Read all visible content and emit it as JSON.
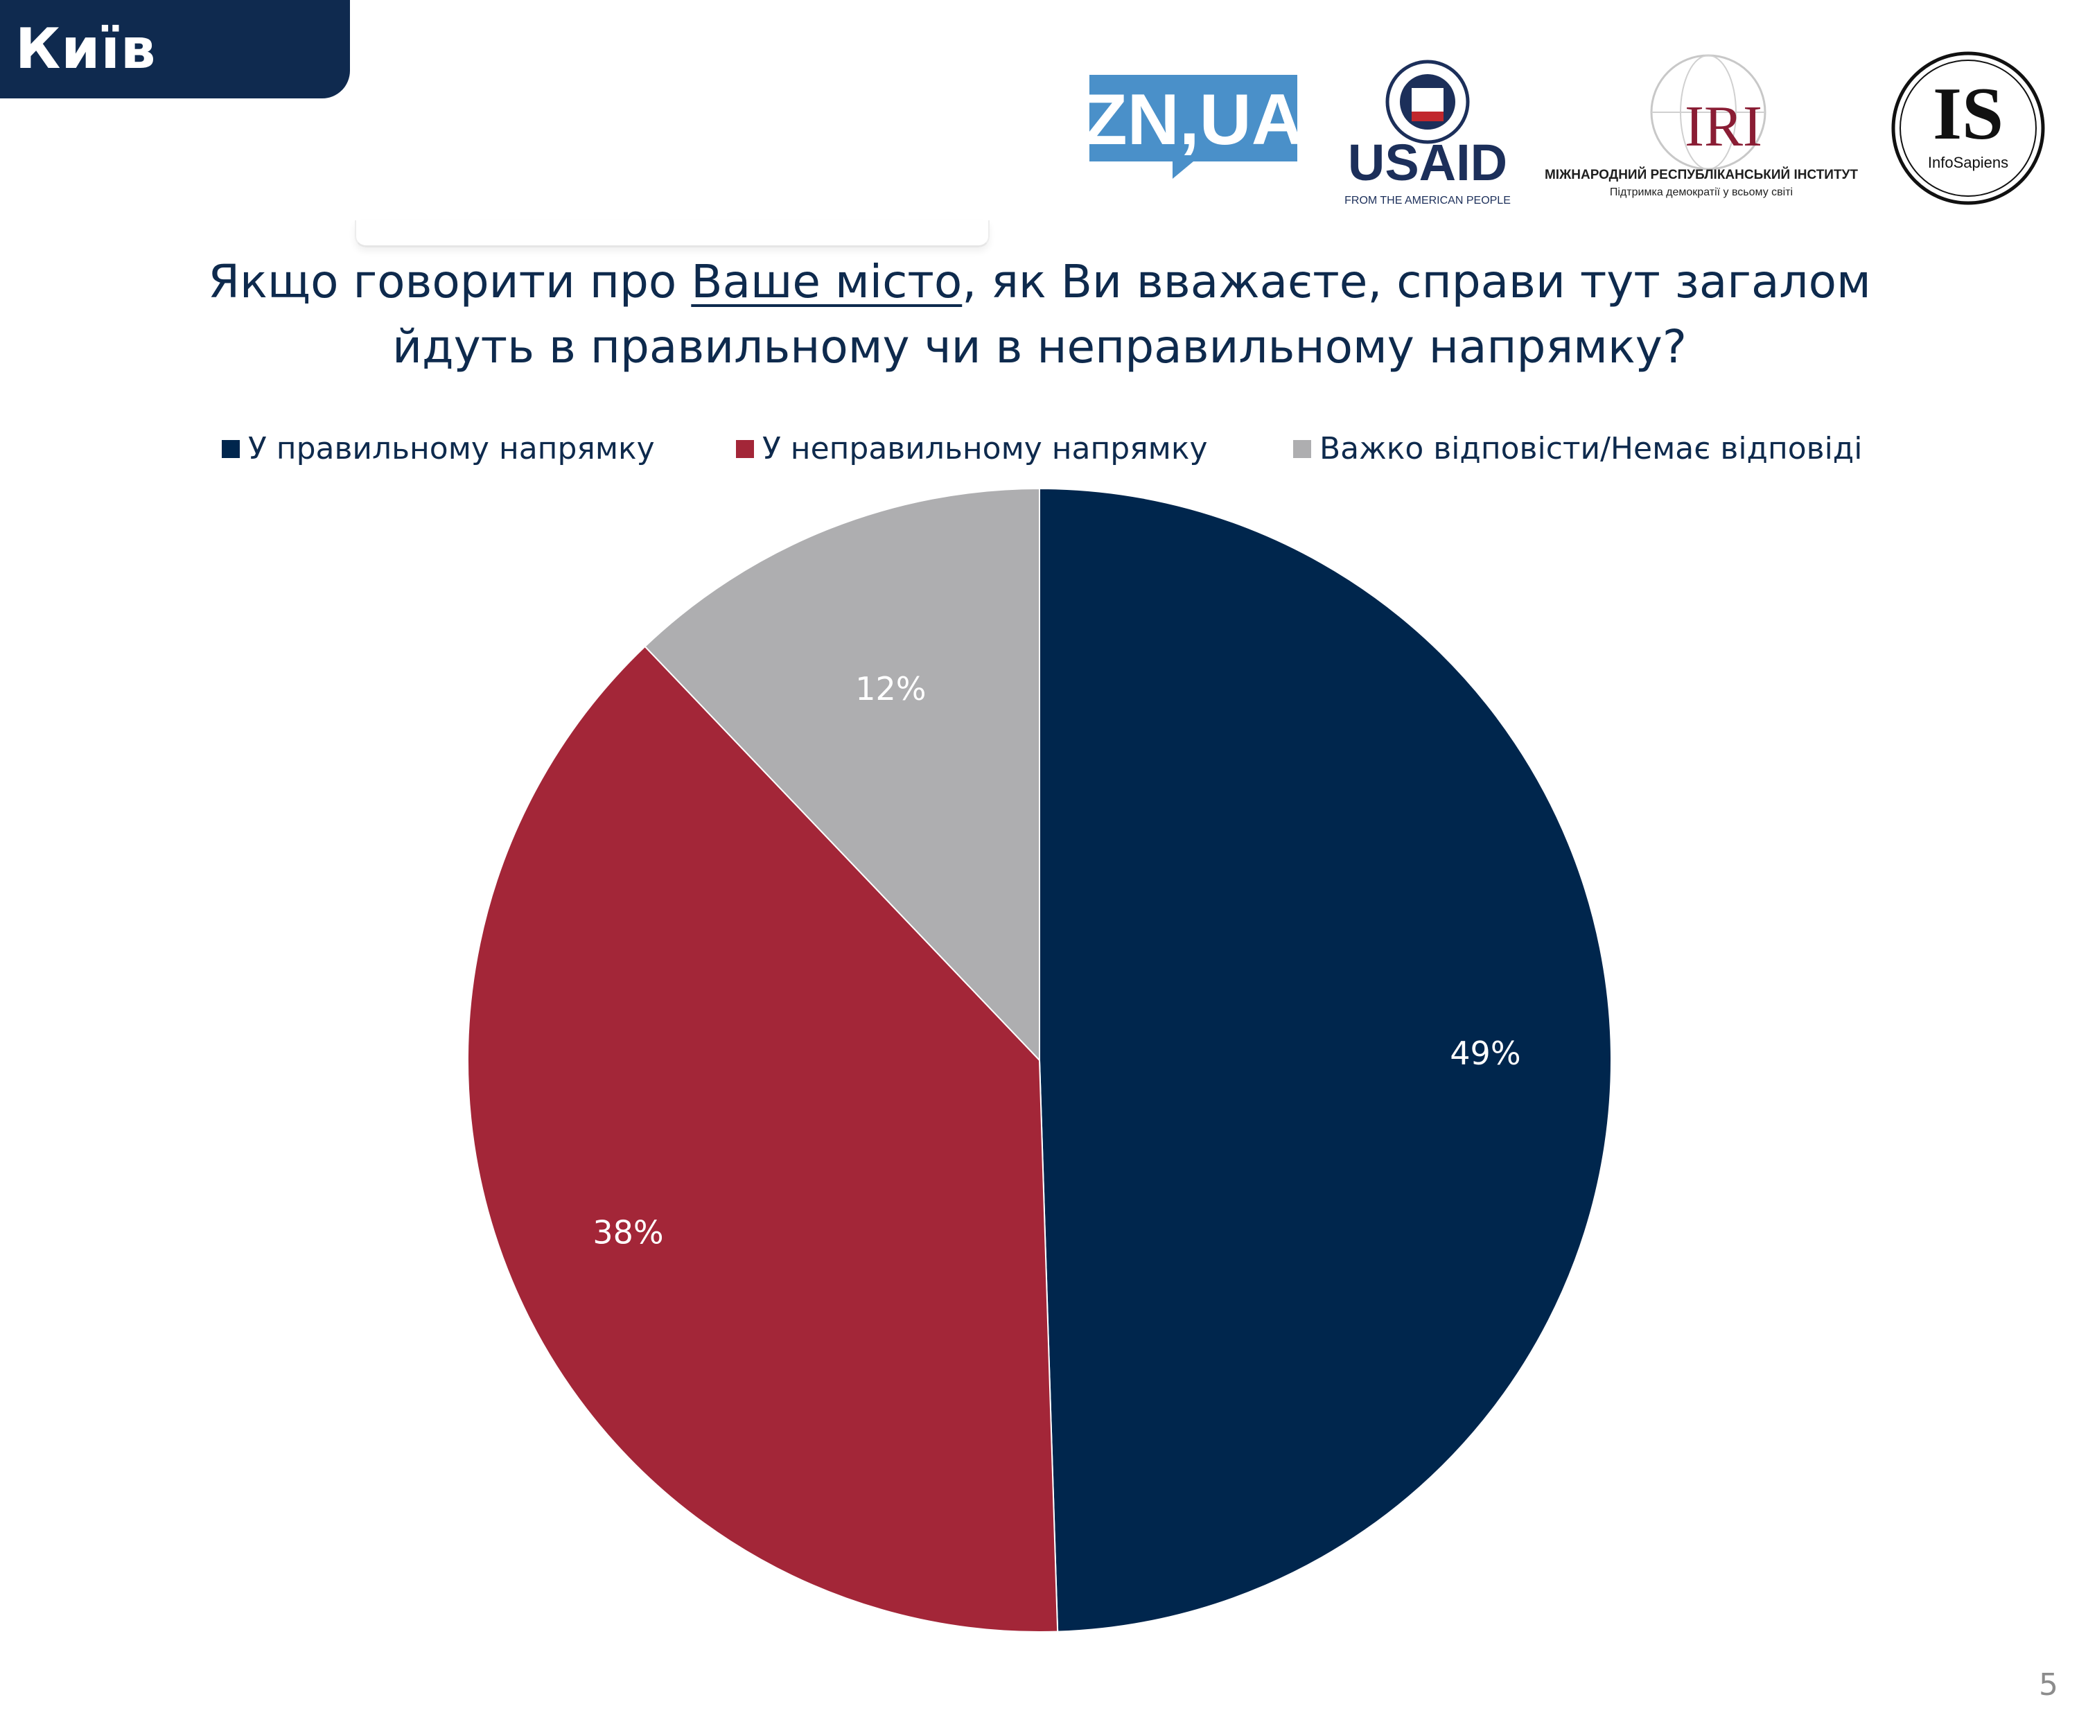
{
  "header": {
    "city": "Київ"
  },
  "logos": {
    "zn": "ZN,UA",
    "usaid_name": "USAID",
    "usaid_tagline": "FROM THE AMERICAN PEOPLE",
    "iri_name": "IRI",
    "iri_line1": "МІЖНАРОДНИЙ РЕСПУБЛІКАНСЬКИЙ ІНСТИТУТ",
    "iri_line2": "Підтримка демократії у всьому світі",
    "is_mark": "IS",
    "is_name": "InfoSapiens"
  },
  "title": {
    "part1": "Якщо говорити про ",
    "underlined": "Ваше місто",
    "part2": ", як Ви вважаєте, справи тут загалом",
    "line2": "йдуть в правильному чи в неправильному напрямку?"
  },
  "chart_data": {
    "type": "pie",
    "categories": [
      "У правильному напрямку",
      "У неправильному напрямку",
      "Важко відповісти/Немає відповіді"
    ],
    "values": [
      49,
      38,
      12
    ],
    "labels": [
      "49%",
      "38%",
      "12%"
    ],
    "colors": [
      "#00264d",
      "#a32638",
      "#aeaeb0"
    ],
    "legend_position": "top",
    "start_angle": "12 o'clock",
    "direction": "clockwise"
  },
  "page_number": "5"
}
